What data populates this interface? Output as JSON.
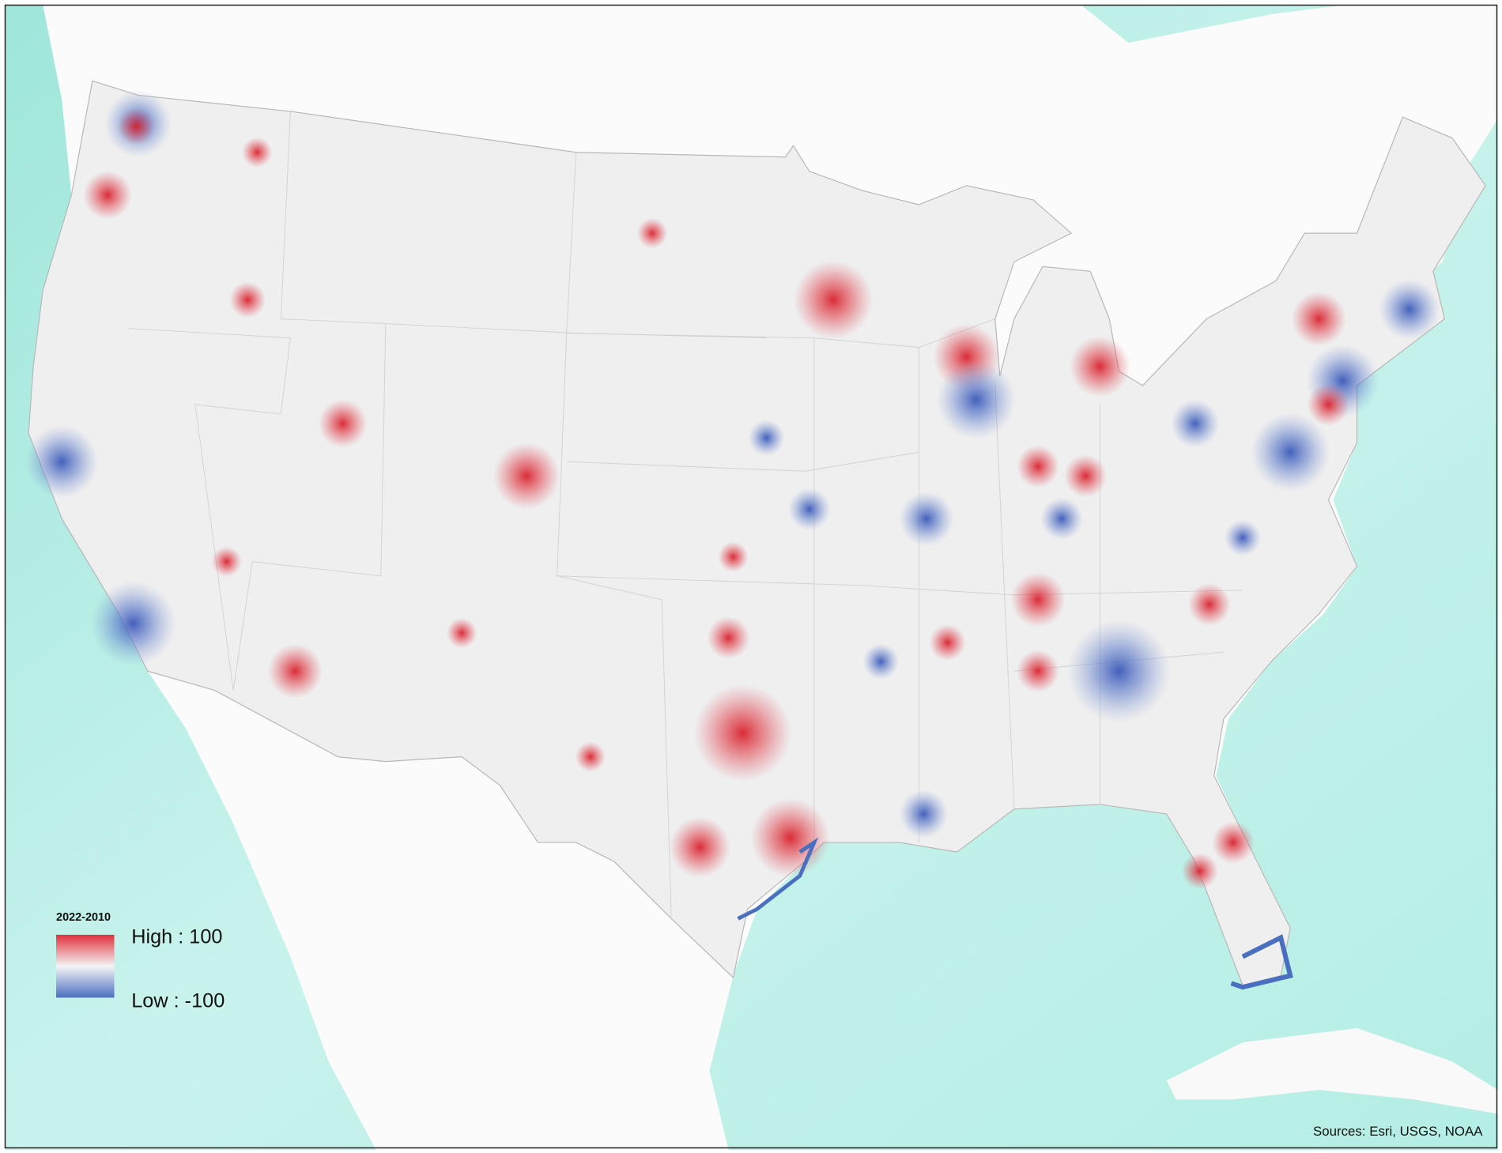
{
  "legend": {
    "title": "2022-2010",
    "high_label": "High : 100",
    "low_label": "Low : -100"
  },
  "credits": "Sources: Esri, USGS, NOAA"
}
